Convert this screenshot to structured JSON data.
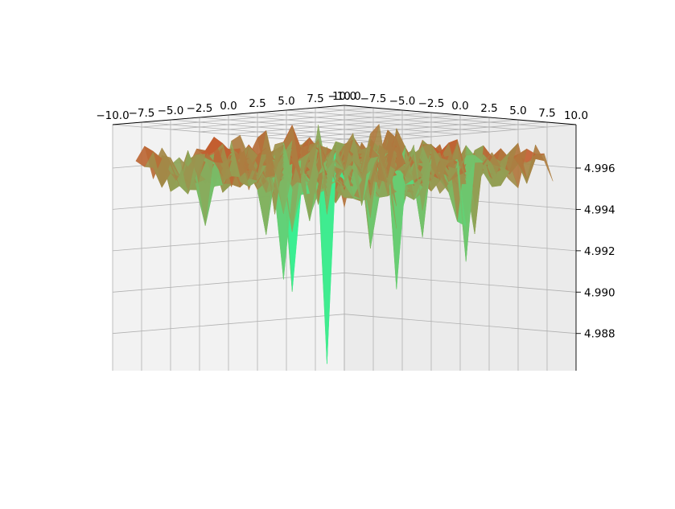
{
  "chart_data": {
    "type": "surface3d",
    "title": "",
    "colormap": "rainbow",
    "grid": true,
    "x_axis": {
      "range": [
        -10,
        10
      ],
      "ticks": [
        -10.0,
        -7.5,
        -5.0,
        -2.5,
        0.0,
        2.5,
        5.0,
        7.5,
        10.0
      ],
      "tick_labels": [
        "−10.0",
        "−7.5",
        "−5.0",
        "−2.5",
        "0.0",
        "2.5",
        "5.0",
        "7.5",
        "10.0"
      ]
    },
    "y_axis": {
      "range": [
        -10,
        10
      ],
      "ticks": [
        -10.0,
        -7.5,
        -5.0,
        -2.5,
        0.0,
        2.5,
        5.0,
        7.5,
        10.0
      ],
      "tick_labels": [
        "−10.0",
        "−7.5",
        "−5.0",
        "−2.5",
        "0.0",
        "2.5",
        "5.0",
        "7.5",
        "10.0"
      ]
    },
    "z_axis": {
      "range": [
        4.9862,
        4.9981
      ],
      "ticks": [
        4.988,
        4.99,
        4.992,
        4.994,
        4.996
      ],
      "tick_labels": [
        "4.988",
        "4.990",
        "4.992",
        "4.994",
        "4.996"
      ]
    },
    "surface": {
      "z_max": 4.9981,
      "z_min": 4.9865,
      "z_typical": 4.996,
      "deep_dips": [
        {
          "x": -1.5,
          "y": 0.0,
          "z": 4.9866
        },
        {
          "x": -5.0,
          "y": 0.5,
          "z": 4.9903
        },
        {
          "x": 4.0,
          "y": 1.0,
          "z": 4.99
        },
        {
          "x": -6.5,
          "y": 1.5,
          "z": 4.991
        },
        {
          "x": 8.5,
          "y": 2.0,
          "z": 4.9912
        }
      ]
    }
  }
}
